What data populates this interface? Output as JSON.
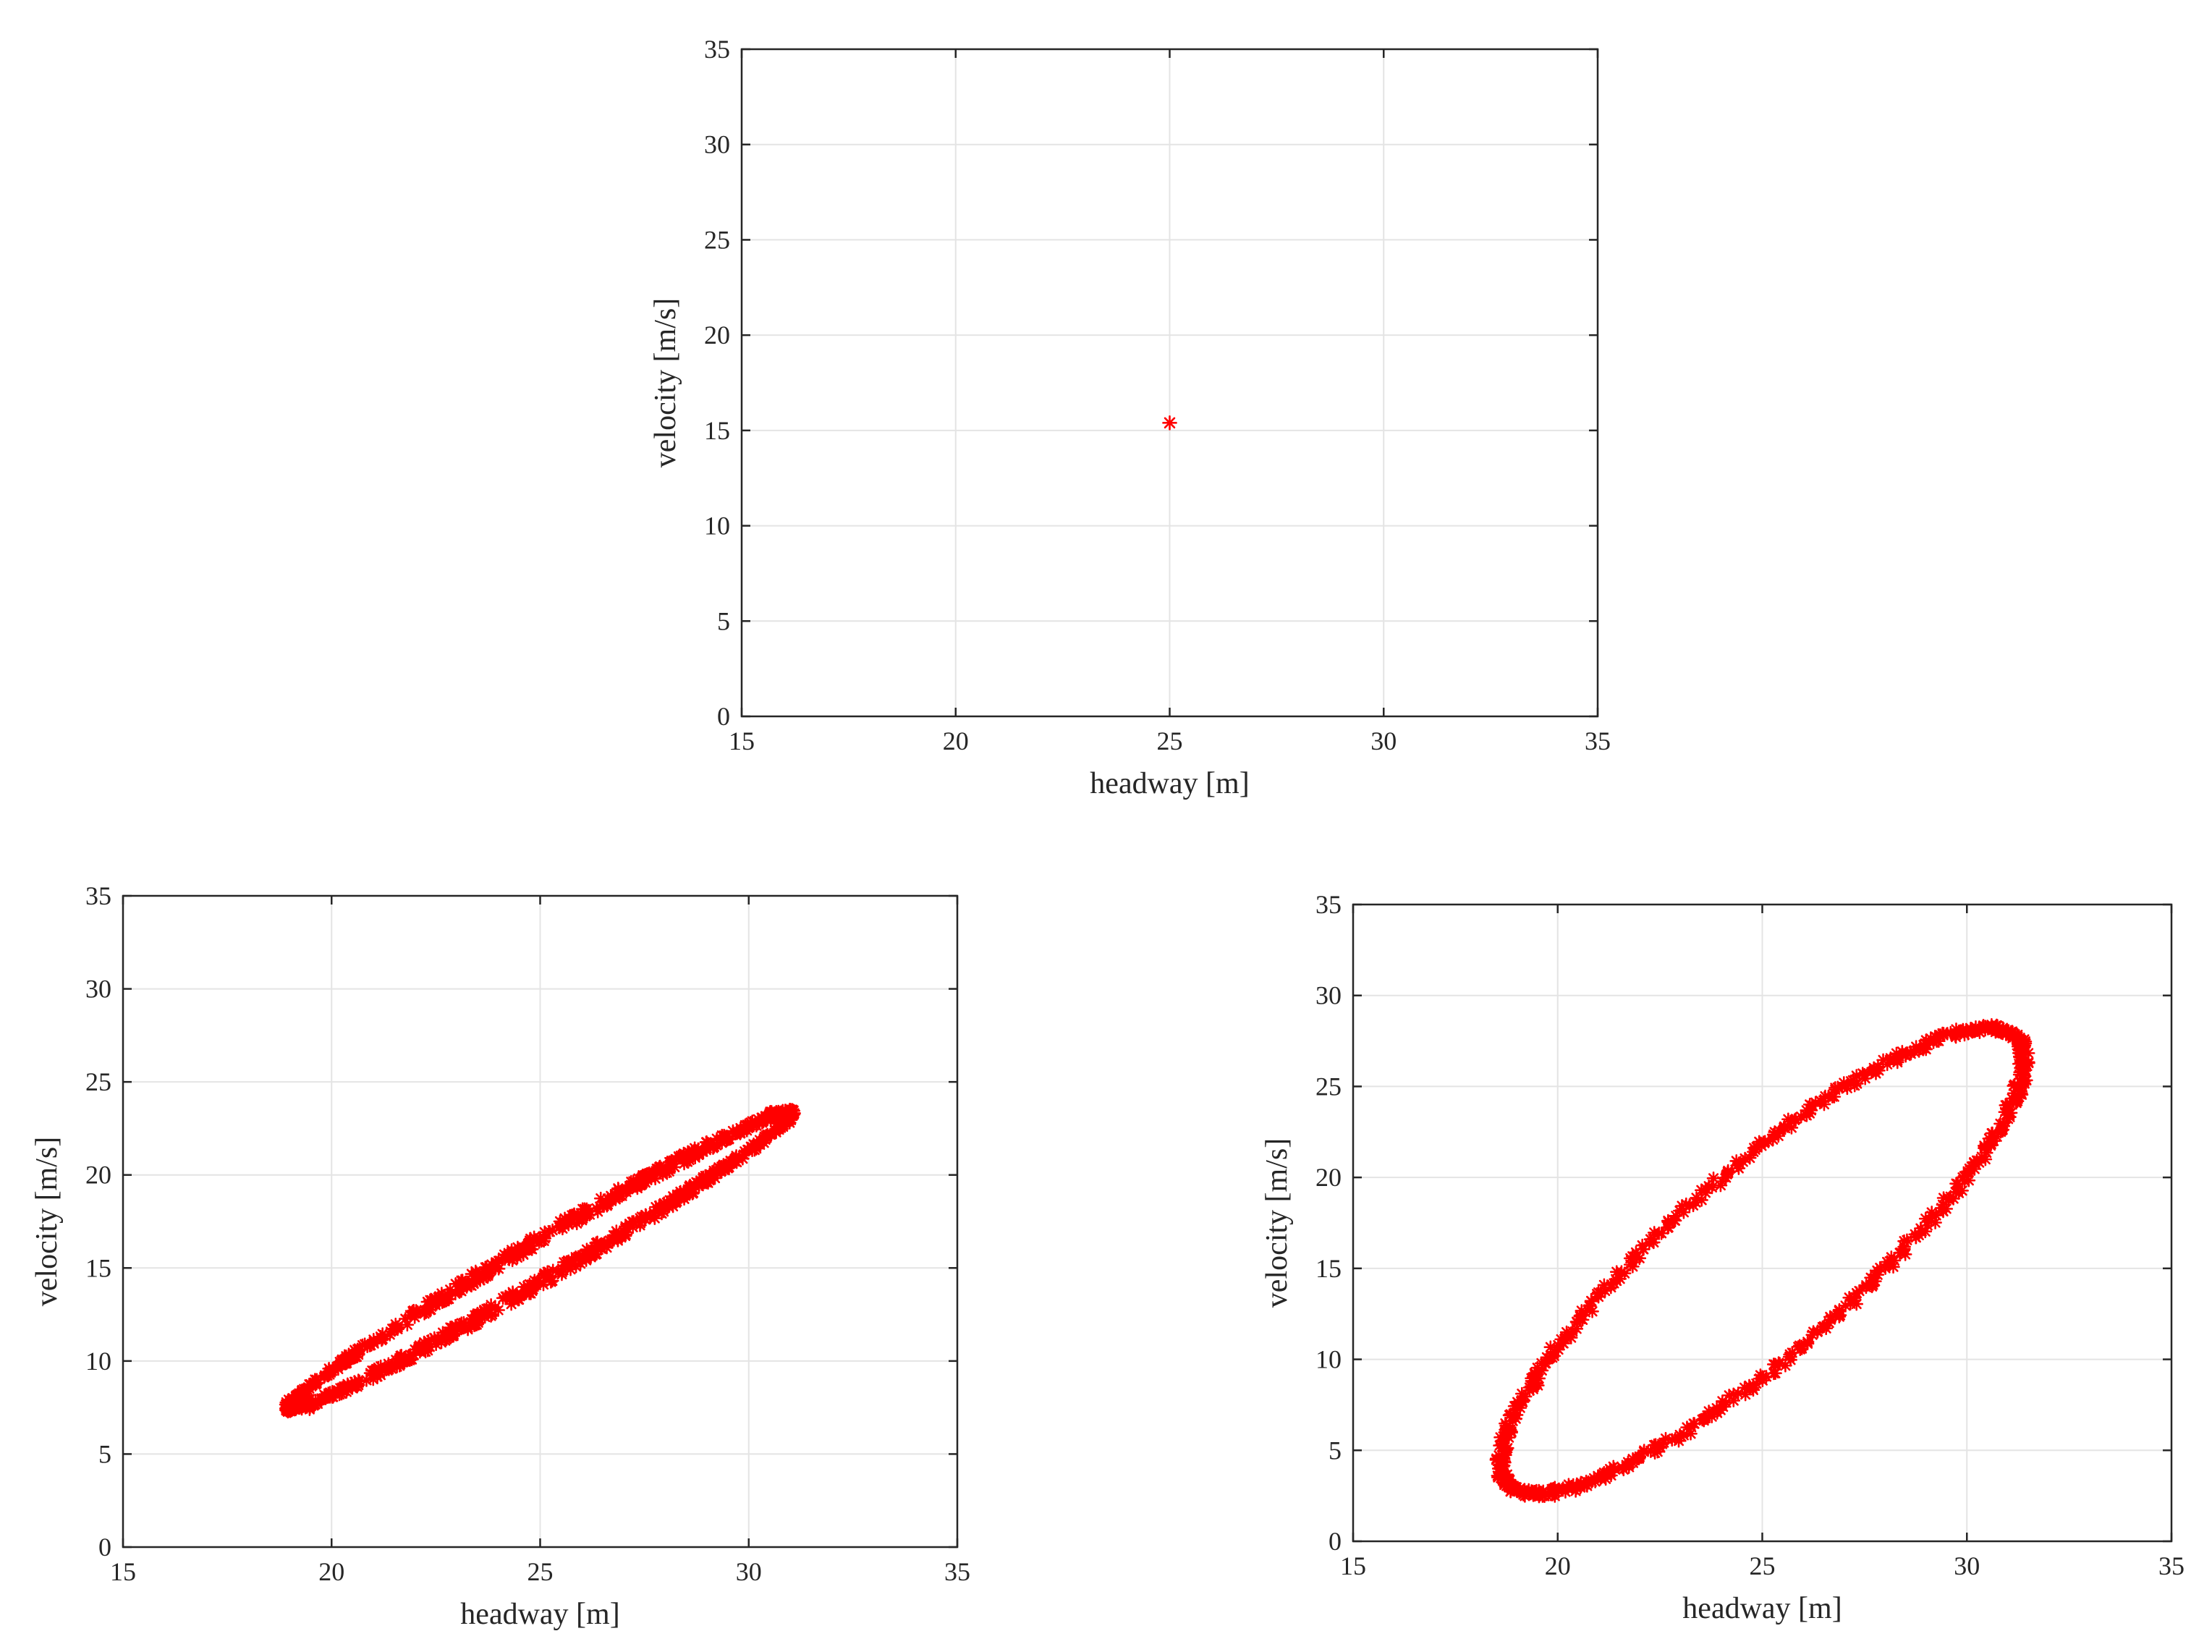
{
  "chart_data": [
    {
      "type": "scatter",
      "panel": "top",
      "xlabel": "headway [m]",
      "ylabel": "velocity [m/s]",
      "xlim": [
        15,
        35
      ],
      "ylim": [
        0,
        35
      ],
      "xticks": [
        15,
        20,
        25,
        30,
        35
      ],
      "yticks": [
        0,
        5,
        10,
        15,
        20,
        25,
        30,
        35
      ],
      "grid": true,
      "marker": "asterisk",
      "color": "#ff0000",
      "series": [
        {
          "shape": "point",
          "x": [
            25.0
          ],
          "y": [
            15.4
          ]
        }
      ]
    },
    {
      "type": "scatter",
      "panel": "bottom-left",
      "xlabel": "headway [m]",
      "ylabel": "velocity [m/s]",
      "xlim": [
        15,
        35
      ],
      "ylim": [
        0,
        35
      ],
      "xticks": [
        15,
        20,
        25,
        30,
        35
      ],
      "yticks": [
        0,
        5,
        10,
        15,
        20,
        25,
        30,
        35
      ],
      "grid": true,
      "marker": "asterisk",
      "color": "#ff0000",
      "series": [
        {
          "shape": "ellipse-band",
          "center": [
            25.0,
            15.4
          ],
          "x_range": [
            18.9,
            31.1
          ],
          "y_range": [
            7.4,
            23.4
          ],
          "band_width_y": 3.0
        }
      ]
    },
    {
      "type": "scatter",
      "panel": "bottom-right",
      "xlabel": "headway [m]",
      "ylabel": "velocity [m/s]",
      "xlim": [
        15,
        35
      ],
      "ylim": [
        0,
        35
      ],
      "xticks": [
        15,
        20,
        25,
        30,
        35
      ],
      "yticks": [
        0,
        5,
        10,
        15,
        20,
        25,
        30,
        35
      ],
      "grid": true,
      "marker": "asterisk",
      "color": "#ff0000",
      "series": [
        {
          "shape": "ellipse-ring",
          "center": [
            25.0,
            15.4
          ],
          "x_range": [
            18.6,
            31.4
          ],
          "y_range": [
            2.6,
            28.2
          ],
          "x_extreme_y": [
            4.5,
            26.5
          ]
        }
      ]
    }
  ]
}
